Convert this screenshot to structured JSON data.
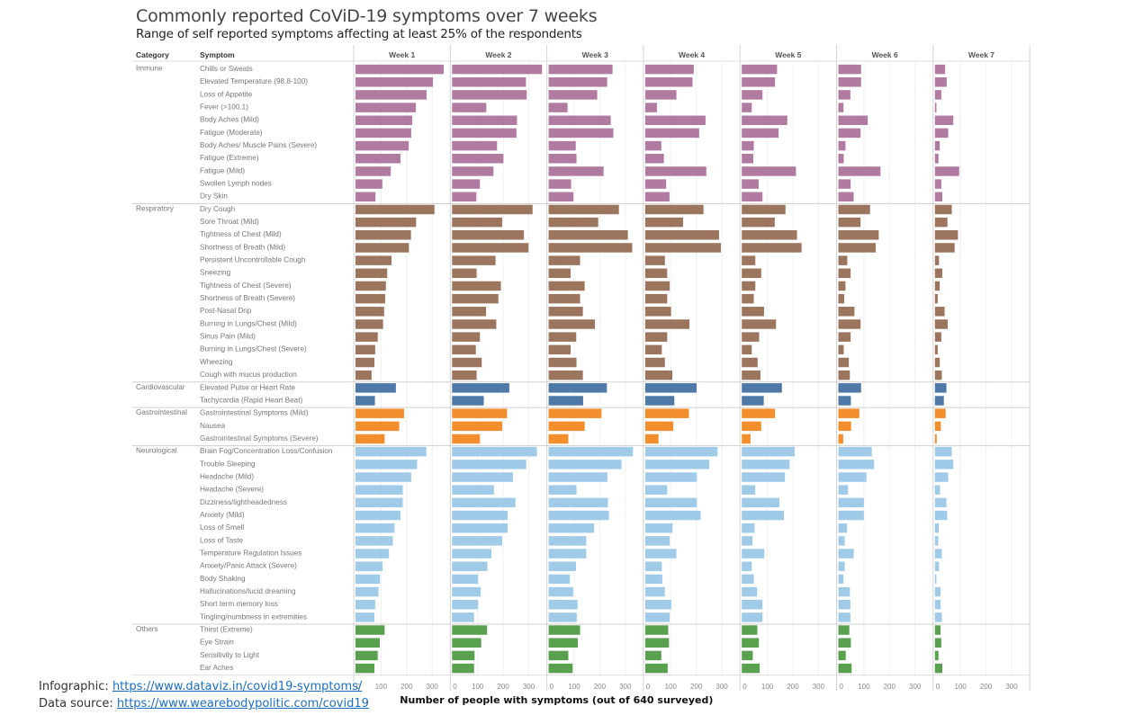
{
  "chart_data": {
    "type": "bar",
    "orientation": "horizontal",
    "title": "Commonly reported CoViD-19 symptoms over 7 weeks",
    "subtitle": "Range of self reported symptoms affecting at least 25% of the respondents",
    "column_headers": {
      "category": "Category",
      "symptom": "Symptom"
    },
    "weeks": [
      "Week 1",
      "Week 2",
      "Week 3",
      "Week 4",
      "Week 5",
      "Week 6",
      "Week 7"
    ],
    "xlabel": "Number of people with symptoms (out of 640 surveyed)",
    "xlim": [
      0,
      370
    ],
    "xticks": [
      0,
      100,
      200,
      300
    ],
    "grid": true,
    "categories": [
      {
        "name": "Immune",
        "color": "#b07aa1",
        "symptoms": [
          {
            "name": "Chills or Sweats",
            "values": [
              345,
              352,
              250,
              190,
              138,
              89,
              40
            ]
          },
          {
            "name": "Elevated Temperature (98.8-100)",
            "values": [
              303,
              289,
              229,
              185,
              130,
              89,
              46
            ]
          },
          {
            "name": "Loss of Appetite",
            "values": [
              278,
              292,
              190,
              122,
              81,
              47,
              25
            ]
          },
          {
            "name": "Fever (>100.1)",
            "values": [
              236,
              134,
              74,
              46,
              39,
              20,
              6
            ]
          },
          {
            "name": "Body Aches (Mild)",
            "values": [
              222,
              254,
              243,
              236,
              178,
              115,
              72
            ]
          },
          {
            "name": "Fatigue (Moderate)",
            "values": [
              218,
              252,
              253,
              211,
              144,
              87,
              52
            ]
          },
          {
            "name": "Body Aches/ Muscle Pains (Severe)",
            "values": [
              208,
              176,
              106,
              63,
              47,
              28,
              19
            ]
          },
          {
            "name": "Fatigue (Extreme)",
            "values": [
              176,
              201,
              109,
              73,
              45,
              21,
              14
            ]
          },
          {
            "name": "Fatigue (Mild)",
            "values": [
              138,
              162,
              215,
              239,
              212,
              165,
              95
            ]
          },
          {
            "name": "Swollen Lymph nodes",
            "values": [
              105,
              109,
              88,
              82,
              66,
              48,
              25
            ]
          },
          {
            "name": "Dry Skin",
            "values": [
              78,
              95,
              97,
              95,
              81,
              60,
              29
            ]
          }
        ]
      },
      {
        "name": "Respiratory",
        "color": "#9c755f",
        "symptoms": [
          {
            "name": "Dry Cough",
            "values": [
              309,
              315,
              275,
              228,
              171,
              124,
              66
            ]
          },
          {
            "name": "Sore Throat (Mild)",
            "values": [
              237,
              196,
              194,
              148,
              129,
              87,
              49
            ]
          },
          {
            "name": "Tightness of Chest (Mild)",
            "values": [
              217,
              281,
              310,
              289,
              216,
              158,
              90
            ]
          },
          {
            "name": "Shortness of Breath (Mild)",
            "values": [
              209,
              299,
              327,
              296,
              234,
              146,
              77
            ]
          },
          {
            "name": "Persistent Uncontrollable Cough",
            "values": [
              141,
              170,
              123,
              77,
              53,
              35,
              16
            ]
          },
          {
            "name": "Sneezing",
            "values": [
              124,
              96,
              86,
              86,
              76,
              48,
              29
            ]
          },
          {
            "name": "Tightness of Chest (Severe)",
            "values": [
              119,
              191,
              141,
              96,
              53,
              28,
              19
            ]
          },
          {
            "name": "Shortness of Breath (Severe)",
            "values": [
              116,
              181,
              123,
              86,
              47,
              23,
              11
            ]
          },
          {
            "name": "Post-Nasal Drip",
            "values": [
              112,
              133,
              134,
              101,
              87,
              63,
              38
            ]
          },
          {
            "name": "Burning in Lungs/Chest (Mild)",
            "values": [
              108,
              173,
              181,
              173,
              134,
              87,
              50
            ]
          },
          {
            "name": "Sinus Pain (Mild)",
            "values": [
              87,
              109,
              108,
              86,
              68,
              48,
              25
            ]
          },
          {
            "name": "Burning in Lungs/Chest (Severe)",
            "values": [
              77,
              93,
              86,
              65,
              39,
              21,
              11
            ]
          },
          {
            "name": "Wheezing",
            "values": [
              74,
              116,
              109,
              77,
              62,
              41,
              19
            ]
          },
          {
            "name": "Cough with mucus production",
            "values": [
              63,
              96,
              134,
              106,
              73,
              45,
              27
            ]
          }
        ]
      },
      {
        "name": "Cardiovascular",
        "color": "#4e79a7",
        "symptoms": [
          {
            "name": "Elevated Pulse or Heart Rate",
            "values": [
              158,
              224,
              228,
              201,
              157,
              89,
              45
            ]
          },
          {
            "name": "Tachycardia (Rapid Heart Beat)",
            "values": [
              76,
              124,
              135,
              114,
              86,
              49,
              35
            ]
          }
        ]
      },
      {
        "name": "Gastrointestinal",
        "color": "#f28e2b",
        "symptoms": [
          {
            "name": "Gastrointestinal Symptoms (Mild)",
            "values": [
              190,
              215,
              207,
              171,
              130,
              82,
              42
            ]
          },
          {
            "name": "Nausea",
            "values": [
              171,
              196,
              141,
              110,
              76,
              50,
              23
            ]
          },
          {
            "name": "Gastrointestinal Symptoms (Severe)",
            "values": [
              114,
              109,
              77,
              52,
              34,
              19,
              7
            ]
          }
        ]
      },
      {
        "name": "Neurological",
        "color": "#a0cbe8",
        "symptoms": [
          {
            "name": "Brain Fog/Concentration Loss/Confusion",
            "values": [
              277,
              332,
              330,
              283,
              207,
              131,
              66
            ]
          },
          {
            "name": "Trouble Sleeping",
            "values": [
              241,
              290,
              285,
              251,
              187,
              140,
              72
            ]
          },
          {
            "name": "Headache (Mild)",
            "values": [
              218,
              238,
              230,
              202,
              169,
              110,
              52
            ]
          },
          {
            "name": "Headache (Severe)",
            "values": [
              185,
              164,
              109,
              86,
              53,
              38,
              20
            ]
          },
          {
            "name": "Dizziness/lightheadedness",
            "values": [
              185,
              248,
              232,
              202,
              147,
              100,
              45
            ]
          },
          {
            "name": "Anxiety (Mild)",
            "values": [
              176,
              217,
              236,
              217,
              165,
              100,
              48
            ]
          },
          {
            "name": "Loss of Smell",
            "values": [
              153,
              217,
              178,
              107,
              50,
              34,
              15
            ]
          },
          {
            "name": "Loss of Taste",
            "values": [
              146,
              196,
              147,
              96,
              42,
              25,
              13
            ]
          },
          {
            "name": "Temperature Regulation Issues",
            "values": [
              131,
              154,
              147,
              122,
              88,
              60,
              27
            ]
          },
          {
            "name": "Anxiety/Panic Attack (Severe)",
            "values": [
              106,
              138,
              107,
              65,
              39,
              25,
              16
            ]
          },
          {
            "name": "Body Shaking",
            "values": [
              96,
              102,
              83,
              67,
              47,
              20,
              6
            ]
          },
          {
            "name": "Hallucinations/lucid dreaming",
            "values": [
              90,
              112,
              96,
              77,
              60,
              45,
              22
            ]
          },
          {
            "name": "Short term memory loss",
            "values": [
              77,
              102,
              113,
              102,
              81,
              47,
              22
            ]
          },
          {
            "name": "Tingling/numbness in extremities",
            "values": [
              74,
              86,
              110,
              96,
              81,
              47,
              27
            ]
          }
        ]
      },
      {
        "name": "Others",
        "color": "#59a14f",
        "symptoms": [
          {
            "name": "Thirst (Extreme)",
            "values": [
              114,
              137,
              123,
              90,
              61,
              43,
              22
            ]
          },
          {
            "name": "Eye Strain",
            "values": [
              95,
              114,
              114,
              93,
              67,
              49,
              25
            ]
          },
          {
            "name": "Sensitivity to Light",
            "values": [
              87,
              88,
              77,
              63,
              43,
              29,
              14
            ]
          },
          {
            "name": "Ear Aches",
            "values": [
              74,
              86,
              94,
              88,
              70,
              52,
              29
            ]
          }
        ]
      }
    ]
  },
  "credits": {
    "infographic_label": "Infographic: ",
    "infographic_link": "https://www.dataviz.in/covid19-symptoms/",
    "source_label": "Data source: ",
    "source_link": "https://www.wearebodypolitic.com/covid19"
  }
}
